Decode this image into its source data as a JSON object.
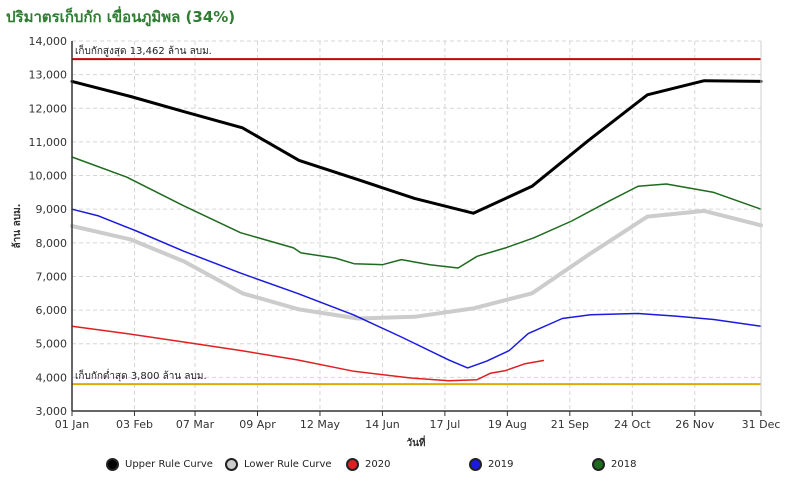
{
  "header": {
    "title": "ปริมาตรเก็บกัก เขื่อนภูมิพล (34%)"
  },
  "chart_data": {
    "type": "line",
    "title": "ปริมาตรเก็บกัก เขื่อนภูมิพล (34%)",
    "xlabel": "วันที่",
    "ylabel": "ล้าน ลบม.",
    "ylim": [
      3000,
      14000
    ],
    "yticks": [
      "3,000",
      "4,000",
      "5,000",
      "6,000",
      "7,000",
      "8,000",
      "9,000",
      "10,000",
      "11,000",
      "12,000",
      "13,000",
      "14,000"
    ],
    "x_ticks": [
      {
        "doy": 1,
        "label": "01 Jan"
      },
      {
        "doy": 34,
        "label": "03 Feb"
      },
      {
        "doy": 66,
        "label": "07 Mar"
      },
      {
        "doy": 99,
        "label": "09 Apr"
      },
      {
        "doy": 132,
        "label": "12 May"
      },
      {
        "doy": 165,
        "label": "14 Jun"
      },
      {
        "doy": 198,
        "label": "17 Jul"
      },
      {
        "doy": 231,
        "label": "19 Aug"
      },
      {
        "doy": 264,
        "label": "21 Sep"
      },
      {
        "doy": 297,
        "label": "24 Oct"
      },
      {
        "doy": 330,
        "label": "26 Nov"
      },
      {
        "doy": 365,
        "label": "31 Dec"
      }
    ],
    "grid": true,
    "legend_position": "bottom",
    "reference_lines": [
      {
        "label": "เก็บกักสูงสุด 13,462 ล้าน ลบม.",
        "value": 13462,
        "color": "#cc0000"
      },
      {
        "label": "เก็บกักต่ำสุด 3,800 ล้าน ลบม.",
        "value": 3800,
        "color": "#e0a800"
      }
    ],
    "series": [
      {
        "name": "Upper Rule Curve",
        "color": "#000000",
        "width": 3,
        "x": [
          1,
          32,
          60,
          91,
          121,
          152,
          182,
          213,
          244,
          274,
          305,
          335,
          365
        ],
        "y": [
          12800,
          12350,
          11900,
          11420,
          10450,
          9880,
          9320,
          8880,
          9680,
          11050,
          12400,
          12820,
          12800
        ]
      },
      {
        "name": "Lower Rule Curve",
        "color": "#cccccc",
        "width": 4,
        "x": [
          1,
          32,
          60,
          91,
          121,
          152,
          182,
          213,
          244,
          274,
          305,
          335,
          365
        ],
        "y": [
          8500,
          8100,
          7450,
          6500,
          6020,
          5750,
          5800,
          6050,
          6500,
          7650,
          8780,
          8950,
          8520
        ]
      },
      {
        "name": "2020",
        "color": "#e02020",
        "width": 1.5,
        "x": [
          1,
          30,
          60,
          90,
          120,
          150,
          180,
          200,
          215,
          222,
          230,
          240,
          250
        ],
        "y": [
          5520,
          5300,
          5050,
          4800,
          4520,
          4180,
          3980,
          3900,
          3930,
          4120,
          4200,
          4400,
          4500
        ]
      },
      {
        "name": "2019",
        "color": "#1a1ae0",
        "width": 1.5,
        "x": [
          1,
          15,
          35,
          60,
          90,
          120,
          150,
          175,
          200,
          210,
          220,
          232,
          242,
          260,
          275,
          300,
          320,
          340,
          365
        ],
        "y": [
          9000,
          8800,
          8350,
          7750,
          7100,
          6500,
          5850,
          5200,
          4520,
          4280,
          4480,
          4800,
          5300,
          5750,
          5860,
          5900,
          5820,
          5720,
          5520
        ]
      },
      {
        "name": "2018",
        "color": "#1e6b1e",
        "width": 1.5,
        "x": [
          1,
          30,
          60,
          90,
          118,
          122,
          140,
          150,
          165,
          175,
          190,
          205,
          215,
          230,
          245,
          265,
          285,
          300,
          315,
          340,
          365
        ],
        "y": [
          10550,
          9950,
          9100,
          8300,
          7850,
          7700,
          7550,
          7380,
          7350,
          7500,
          7350,
          7250,
          7600,
          7850,
          8150,
          8650,
          9250,
          9680,
          9750,
          9500,
          9000
        ]
      }
    ]
  }
}
